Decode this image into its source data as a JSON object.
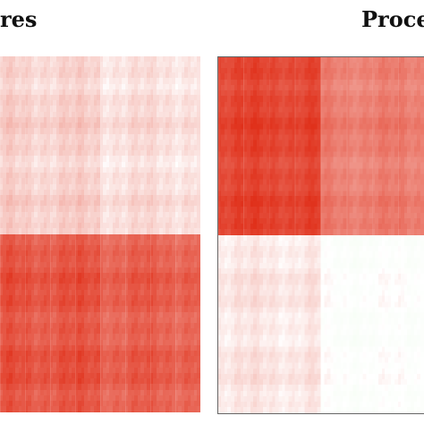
{
  "chart_data": [
    {
      "type": "heatmap",
      "title": "res",
      "colors": {
        "high": "#e0301a",
        "mid": "#ffffff",
        "low": "#cff6c8"
      },
      "cluster_boundary_fraction": 0.5,
      "grid_resolution": 64,
      "block_values": [
        [
          0.18,
          0.16
        ],
        [
          0.82,
          0.73
        ]
      ],
      "block_variation": 0.16
    },
    {
      "type": "heatmap",
      "title": "Proce",
      "colors": {
        "high": "#e0301a",
        "mid": "#ffffff",
        "low": "#cff6c8"
      },
      "cluster_boundary_fraction": 0.5,
      "grid_resolution": 64,
      "block_values": [
        [
          0.86,
          0.62
        ],
        [
          0.12,
          -0.08
        ]
      ],
      "block_variation": 0.14
    }
  ]
}
